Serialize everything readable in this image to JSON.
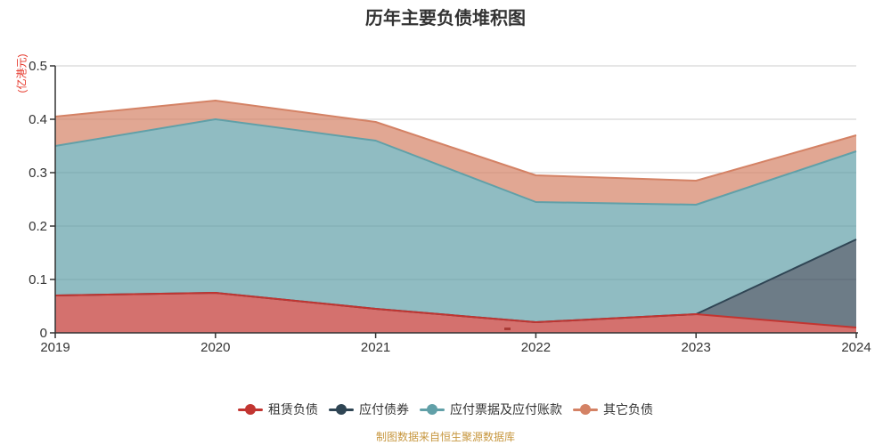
{
  "title": "历年主要负债堆积图",
  "y_axis": {
    "unit": "(亿港元)",
    "unit_color": "#e53528",
    "ticks": [
      "0",
      "0.1",
      "0.2",
      "0.3",
      "0.4",
      "0.5"
    ]
  },
  "footer": {
    "text": "制图数据来自恒生聚源数据库",
    "color": "#c7973f"
  },
  "colors": {
    "axis": "#333333",
    "grid": "#cccccc",
    "label": "#333333"
  },
  "chart_data": {
    "type": "area",
    "stacked": true,
    "title": "历年主要负债堆积图",
    "ylabel": "(亿港元)",
    "ylim": [
      0,
      0.5
    ],
    "grid": true,
    "legend_position": "bottom",
    "categories": [
      "2019",
      "2020",
      "2021",
      "2022",
      "2023",
      "2024"
    ],
    "series": [
      {
        "name": "租赁负债",
        "color": "#c23531",
        "values": [
          0.07,
          0.075,
          0.045,
          0.02,
          0.035,
          0.01
        ]
      },
      {
        "name": "应付债券",
        "color": "#2f4554",
        "values": [
          0,
          0,
          0,
          0,
          0,
          0.165
        ]
      },
      {
        "name": "应付票据及应付账款",
        "color": "#61a0a8",
        "values": [
          0.28,
          0.325,
          0.315,
          0.225,
          0.205,
          0.165
        ]
      },
      {
        "name": "其它负债",
        "color": "#d48265",
        "values": [
          0.055,
          0.035,
          0.035,
          0.05,
          0.045,
          0.03
        ]
      }
    ]
  }
}
